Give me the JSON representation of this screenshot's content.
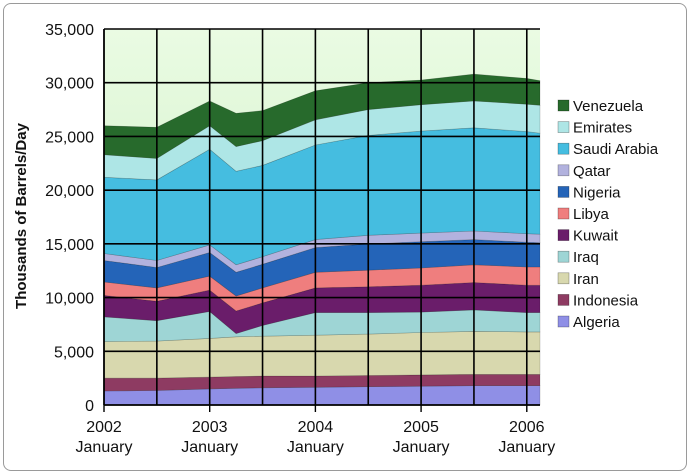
{
  "chart_data": {
    "type": "area",
    "stacked": true,
    "ylabel": "Thousands of Barrels/Day",
    "xlabel": "",
    "ylim": [
      0,
      35000
    ],
    "yticks": [
      0,
      5000,
      10000,
      15000,
      20000,
      25000,
      30000,
      35000
    ],
    "ytick_labels": [
      "0",
      "5,000",
      "10,000",
      "15,000",
      "20,000",
      "25,000",
      "30,000",
      "35,000"
    ],
    "xlim": [
      2002.0,
      2006.125
    ],
    "xticks": [
      {
        "x": 2002,
        "year": "2002",
        "month": "January"
      },
      {
        "x": 2003,
        "year": "2003",
        "month": "January"
      },
      {
        "x": 2004,
        "year": "2004",
        "month": "January"
      },
      {
        "x": 2005,
        "year": "2005",
        "month": "January"
      },
      {
        "x": 2006,
        "year": "2006",
        "month": "January"
      }
    ],
    "grid": true,
    "legend_position": "right",
    "x": [
      2002.0,
      2002.5,
      2003.0,
      2003.25,
      2003.5,
      2004.0,
      2004.5,
      2005.0,
      2005.5,
      2006.0,
      2006.125
    ],
    "series": [
      {
        "name": "Algeria",
        "color": "#8f8fe6",
        "values": [
          1300,
          1350,
          1500,
          1550,
          1600,
          1650,
          1700,
          1750,
          1800,
          1800,
          1800
        ]
      },
      {
        "name": "Indonesia",
        "color": "#8e3b62",
        "values": [
          1200,
          1150,
          1100,
          1100,
          1100,
          1050,
          1050,
          1050,
          1050,
          1050,
          1050
        ]
      },
      {
        "name": "Iran",
        "color": "#d8d8ae",
        "values": [
          3400,
          3450,
          3600,
          3700,
          3700,
          3800,
          3850,
          3950,
          4000,
          3950,
          3950
        ]
      },
      {
        "name": "Iraq",
        "color": "#9ed5d5",
        "values": [
          2300,
          1900,
          2500,
          300,
          1000,
          2100,
          2000,
          1900,
          2000,
          1800,
          1800
        ]
      },
      {
        "name": "Kuwait",
        "color": "#6a1d6a",
        "values": [
          2000,
          1800,
          2000,
          2100,
          2100,
          2300,
          2400,
          2500,
          2550,
          2550,
          2550
        ]
      },
      {
        "name": "Libya",
        "color": "#ef7e7e",
        "values": [
          1250,
          1250,
          1300,
          1400,
          1400,
          1450,
          1550,
          1600,
          1650,
          1700,
          1700
        ]
      },
      {
        "name": "Nigeria",
        "color": "#2464b8",
        "values": [
          2000,
          1900,
          2200,
          2200,
          2200,
          2300,
          2450,
          2450,
          2350,
          2300,
          2250
        ]
      },
      {
        "name": "Qatar",
        "color": "#b2b2de",
        "values": [
          650,
          650,
          700,
          700,
          700,
          750,
          800,
          800,
          800,
          800,
          800
        ]
      },
      {
        "name": "Saudi Arabia",
        "color": "#45bde0",
        "values": [
          7100,
          7500,
          8900,
          8700,
          8500,
          8800,
          9300,
          9500,
          9600,
          9500,
          9400
        ]
      },
      {
        "name": "Emirates",
        "color": "#aee6e6",
        "values": [
          2100,
          2000,
          2200,
          2300,
          2300,
          2350,
          2400,
          2450,
          2500,
          2550,
          2600
        ]
      },
      {
        "name": "Venezuela",
        "color": "#276a2c",
        "values": [
          2700,
          2900,
          2300,
          3100,
          2800,
          2700,
          2500,
          2300,
          2500,
          2400,
          2300
        ]
      }
    ]
  }
}
